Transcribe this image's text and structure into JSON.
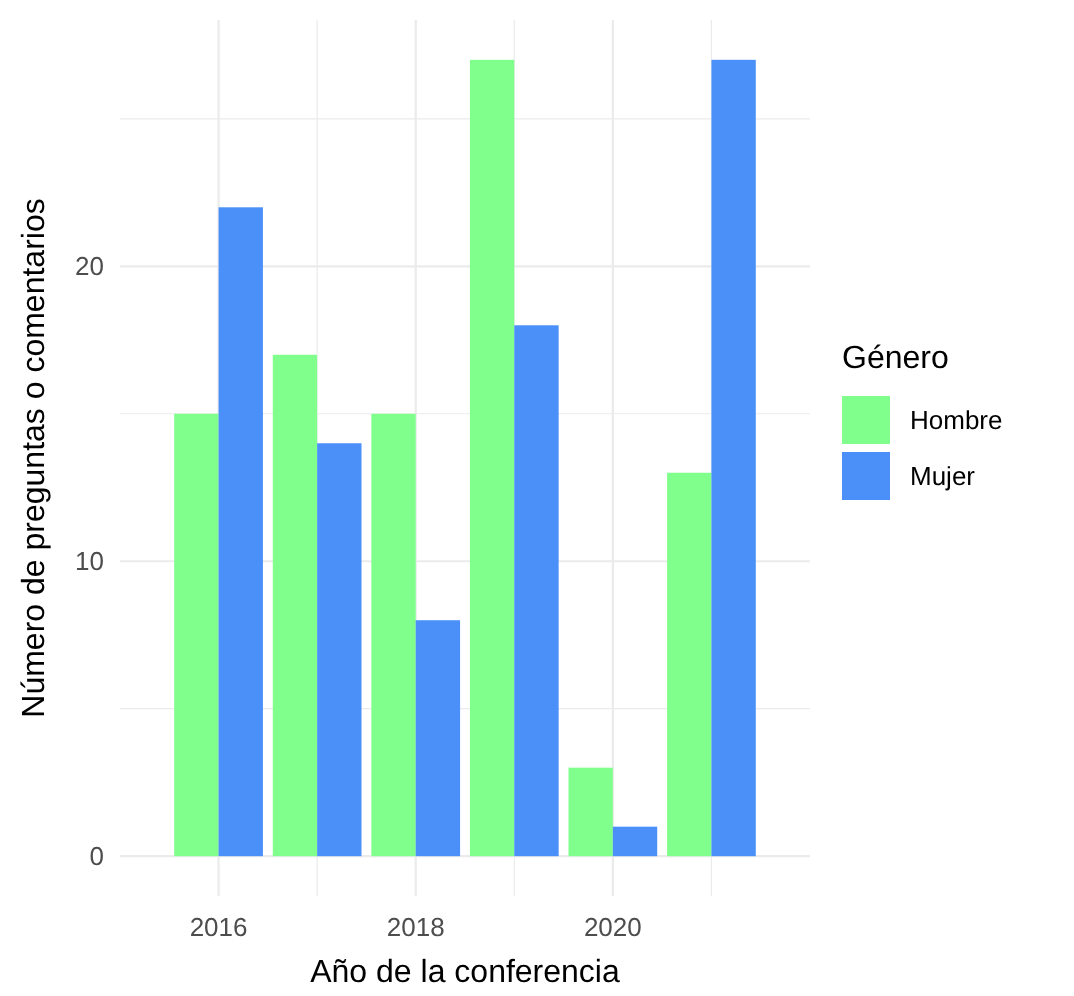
{
  "chart_data": {
    "type": "bar",
    "xlabel": "Año de la conferencia",
    "ylabel": "Número de preguntas o comentarios",
    "legend_title": "Género",
    "categories": [
      "2016",
      null,
      "2018",
      null,
      "2020",
      null
    ],
    "series": [
      {
        "name": "Hombre",
        "color": "#80ff8c",
        "values": [
          15,
          17,
          15,
          27,
          3,
          13
        ]
      },
      {
        "name": "Mujer",
        "color": "#4a90f8",
        "values": [
          22,
          14,
          8,
          18,
          1,
          27
        ]
      }
    ],
    "ylim": [
      -1.35,
      28.35
    ],
    "yticks": [
      0,
      {
        "value": 5,
        "label": null
      },
      10,
      {
        "value": 15,
        "label": null
      },
      20,
      {
        "value": 25,
        "label": null
      }
    ],
    "grid": true,
    "legend": "right"
  }
}
